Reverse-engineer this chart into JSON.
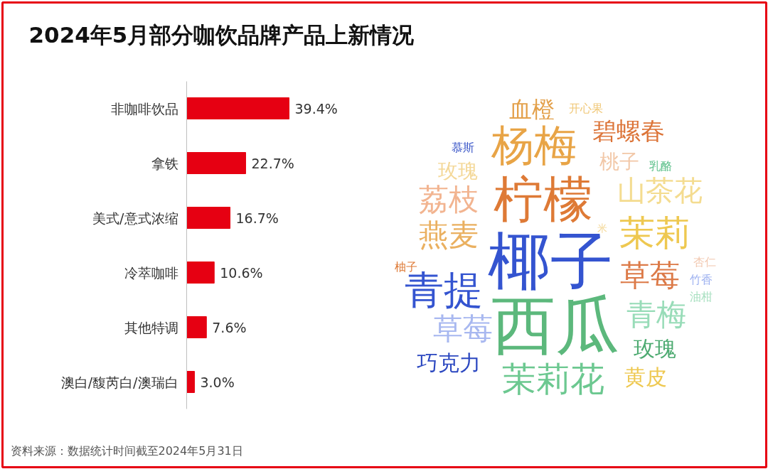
{
  "chart_data": [
    {
      "type": "bar",
      "orientation": "horizontal",
      "title": "2024年5月部分咖饮品牌产品上新情况",
      "categories": [
        "非咖啡饮品",
        "拿铁",
        "美式/意式浓缩",
        "冷萃咖啡",
        "其他特调",
        "澳白/馥芮白/澳瑞白"
      ],
      "values": [
        39.4,
        22.7,
        16.7,
        10.6,
        7.6,
        3.0
      ],
      "value_labels": [
        "39.4%",
        "22.7%",
        "16.7%",
        "10.6%",
        "7.6%",
        "3.0%"
      ],
      "color": "#e60012",
      "annotations": [
        "资料来源：数据统计时间截至2024年5月31日"
      ]
    },
    {
      "type": "other",
      "annotations": [
        "血橙",
        "开心果",
        "杨梅",
        "碧螺春",
        "慕斯",
        "桃子",
        "乳酪",
        "玫瑰",
        "柠檬",
        "山茶花",
        "荔枝",
        "燕麦",
        "茉莉",
        "椰子",
        "柚子",
        "杏仁",
        "青提",
        "米",
        "草莓",
        "竹香",
        "油柑",
        "西瓜",
        "青梅",
        "草莓",
        "玫瑰",
        "巧克力",
        "茉莉花",
        "黄皮"
      ]
    }
  ]
}
